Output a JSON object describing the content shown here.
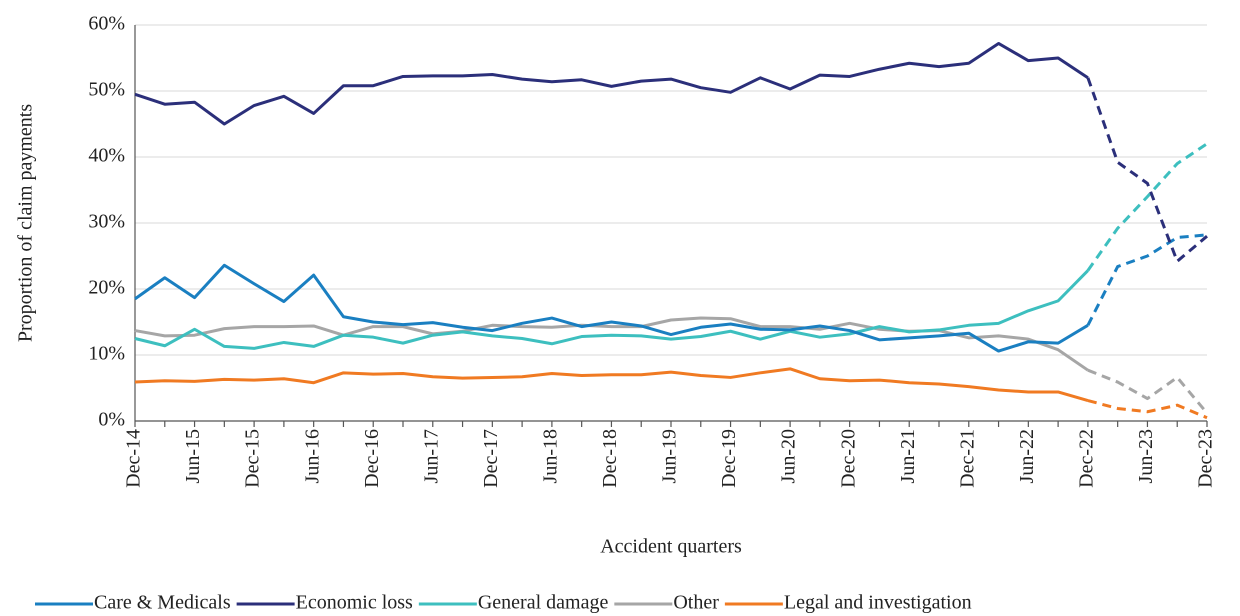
{
  "chart_data": {
    "type": "line",
    "y_axis_label": "Proportion of claim payments",
    "x_axis_label": "Accident quarters",
    "categories": [
      "Dec-14",
      null,
      "Jun-15",
      null,
      "Dec-15",
      null,
      "Jun-16",
      null,
      "Dec-16",
      null,
      "Jun-17",
      null,
      "Dec-17",
      null,
      "Jun-18",
      null,
      "Dec-18",
      null,
      "Jun-19",
      null,
      "Dec-19",
      null,
      "Jun-20",
      null,
      "Dec-20",
      null,
      "Jun-21",
      null,
      "Dec-21",
      null,
      "Jun-22",
      null,
      "Dec-22",
      null,
      "Jun-23",
      null,
      "Dec-23"
    ],
    "dashed_from_index": 32,
    "series": [
      {
        "name": "Care & Medicals",
        "color": "#1a7fc1",
        "values": [
          18.5,
          21.7,
          18.7,
          23.6,
          20.8,
          18.1,
          22.1,
          15.8,
          15,
          14.6,
          14.9,
          14.2,
          13.7,
          14.8,
          15.6,
          14.3,
          15,
          14.4,
          13.1,
          14.2,
          14.7,
          13.9,
          13.8,
          14.4,
          13.7,
          12.3,
          12.6,
          12.9,
          13.3,
          10.6,
          12,
          11.8,
          14.5,
          23.4,
          25,
          27.8,
          28.2
        ]
      },
      {
        "name": "Economic loss",
        "color": "#2b2f7a",
        "values": [
          49.5,
          48,
          48.3,
          45,
          47.8,
          49.2,
          46.6,
          50.8,
          50.8,
          52.2,
          52.3,
          52.3,
          52.5,
          51.8,
          51.4,
          51.7,
          50.7,
          51.5,
          51.8,
          50.5,
          49.8,
          52,
          50.3,
          52.4,
          52.2,
          53.3,
          54.2,
          53.7,
          54.2,
          57.2,
          54.6,
          55,
          52,
          39.2,
          36,
          24.2,
          28
        ]
      },
      {
        "name": "General damage",
        "color": "#3dbfbf",
        "values": [
          12.5,
          11.4,
          13.9,
          11.3,
          11,
          11.9,
          11.3,
          13,
          12.7,
          11.8,
          13,
          13.5,
          12.9,
          12.5,
          11.7,
          12.8,
          13,
          12.9,
          12.4,
          12.8,
          13.6,
          12.4,
          13.6,
          12.7,
          13.2,
          14.3,
          13.5,
          13.8,
          14.5,
          14.8,
          16.7,
          18.2,
          22.8,
          29.2,
          34,
          39,
          42
        ]
      },
      {
        "name": "Other",
        "color": "#a6a6a6",
        "values": [
          13.7,
          12.9,
          13,
          14,
          14.3,
          14.3,
          14.4,
          13,
          14.3,
          14.3,
          13.2,
          13.6,
          14.5,
          14.3,
          14.2,
          14.5,
          14.3,
          14.3,
          15.3,
          15.6,
          15.5,
          14.3,
          14.3,
          13.9,
          14.8,
          13.9,
          13.6,
          13.7,
          12.6,
          12.9,
          12.4,
          10.8,
          7.7,
          5.9,
          3.4,
          6.6,
          1.2
        ]
      },
      {
        "name": "Legal and investigation",
        "color": "#f07a22",
        "values": [
          5.9,
          6.1,
          6,
          6.3,
          6.2,
          6.4,
          5.8,
          7.3,
          7.1,
          7.2,
          6.7,
          6.5,
          6.6,
          6.7,
          7.2,
          6.9,
          7,
          7,
          7.4,
          6.9,
          6.6,
          7.3,
          7.9,
          6.4,
          6.1,
          6.2,
          5.8,
          5.6,
          5.2,
          4.7,
          4.4,
          4.4,
          3.1,
          1.9,
          1.4,
          2.4,
          0.5
        ]
      }
    ],
    "ylim": [
      0,
      60
    ],
    "yticks": [
      {
        "value": 0,
        "label": "0%"
      },
      {
        "value": 10,
        "label": "10%"
      },
      {
        "value": 20,
        "label": "20%"
      },
      {
        "value": 30,
        "label": "30%"
      },
      {
        "value": 40,
        "label": "40%"
      },
      {
        "value": 50,
        "label": "50%"
      },
      {
        "value": 60,
        "label": "60%"
      }
    ],
    "grid": true,
    "legend": "bottom"
  }
}
